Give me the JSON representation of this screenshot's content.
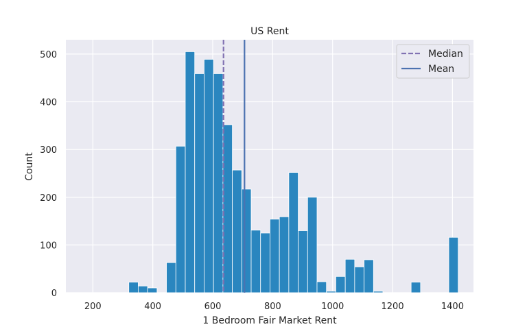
{
  "chart_data": {
    "type": "bar",
    "title": "US Rent",
    "xlabel": "1 Bedroom Fair Market Rent",
    "ylabel": "Count",
    "xlim": [
      110,
      1470
    ],
    "ylim": [
      0,
      530
    ],
    "x_ticks": [
      "200",
      "400",
      "600",
      "800",
      "1000",
      "1200",
      "1400"
    ],
    "x_tick_values": [
      200,
      400,
      600,
      800,
      1000,
      1200,
      1400
    ],
    "y_ticks": [
      "0",
      "100",
      "200",
      "300",
      "400",
      "500"
    ],
    "y_tick_values": [
      0,
      100,
      200,
      300,
      400,
      500
    ],
    "bin_start": 320,
    "bin_width": 31.4,
    "values": [
      22,
      14,
      10,
      0,
      63,
      307,
      505,
      459,
      489,
      459,
      352,
      257,
      217,
      131,
      125,
      154,
      159,
      252,
      130,
      200,
      23,
      3,
      34,
      70,
      54,
      69,
      3,
      0,
      0,
      0,
      22,
      0,
      0,
      0,
      116
    ],
    "bar_color": "#2a86bf",
    "median": 636,
    "mean": 706,
    "legend_position": "top-right",
    "legend": [
      "Median",
      "Mean"
    ],
    "median_color": "#8172b2",
    "mean_color": "#4c72b0",
    "grid": true,
    "background": "#eaeaf2"
  }
}
